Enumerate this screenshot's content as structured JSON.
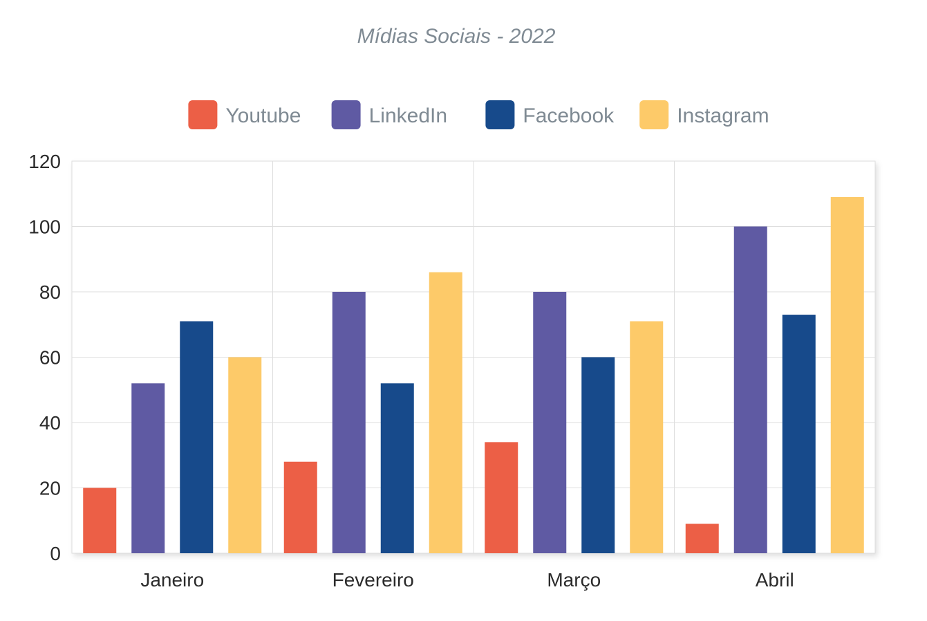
{
  "chart_data": {
    "type": "bar",
    "title": "Mídias Sociais - 2022",
    "categories": [
      "Janeiro",
      "Fevereiro",
      "Março",
      "Abril"
    ],
    "series": [
      {
        "name": "Youtube",
        "color": "#ec5f46",
        "values": [
          20,
          28,
          34,
          9
        ]
      },
      {
        "name": "LinkedIn",
        "color": "#5f5aa3",
        "values": [
          52,
          80,
          80,
          100
        ]
      },
      {
        "name": "Facebook",
        "color": "#174a8b",
        "values": [
          71,
          52,
          60,
          73
        ]
      },
      {
        "name": "Instagram",
        "color": "#fdca69",
        "values": [
          60,
          86,
          71,
          109
        ]
      }
    ],
    "yticks": [
      "0",
      "20",
      "40",
      "60",
      "80",
      "100",
      "120"
    ],
    "ylim": [
      0,
      120
    ],
    "grid": true,
    "legend": "top-center"
  }
}
